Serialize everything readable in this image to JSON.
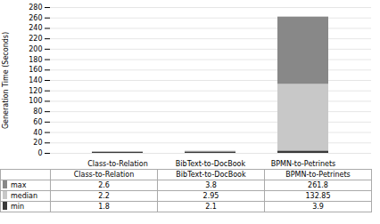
{
  "chart_data": {
    "type": "bar",
    "categories": [
      "Class-to-Relation",
      "BibText-to-DocBook",
      "BPMN-to-Petrinets"
    ],
    "series": [
      {
        "name": "max",
        "color": "#888888",
        "values": [
          2.6,
          3.8,
          261.8
        ]
      },
      {
        "name": "median",
        "color": "#c8c8c8",
        "values": [
          2.2,
          2.95,
          132.85
        ]
      },
      {
        "name": "min",
        "color": "#3a3a3a",
        "values": [
          1.8,
          2.1,
          3.9
        ]
      }
    ],
    "ylabel": "Generation Time (Seconds)",
    "ylim": [
      0,
      280
    ],
    "yticks": [
      0,
      20,
      40,
      60,
      80,
      100,
      120,
      140,
      160,
      180,
      200,
      220,
      240,
      260,
      280
    ],
    "stacked": false,
    "grid": true,
    "legend": "bottom"
  }
}
